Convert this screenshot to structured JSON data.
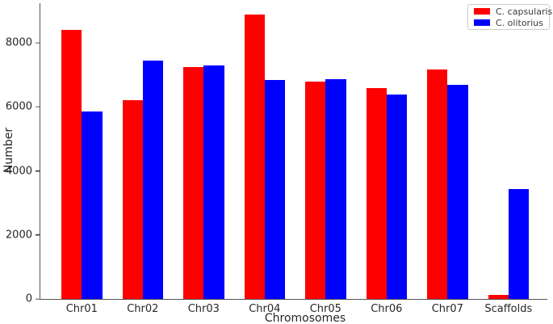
{
  "figure": {
    "background": "#ffffff",
    "axis_color": "#555555",
    "text_color": "#262626"
  },
  "chart_data": {
    "type": "bar",
    "title": "",
    "xlabel": "Chromosomes",
    "ylabel": "Number",
    "categories": [
      "Chr01",
      "Chr02",
      "Chr03",
      "Chr04",
      "Chr05",
      "Chr06",
      "Chr07",
      "Scaffolds"
    ],
    "series": [
      {
        "name": "C. capsularis",
        "color": "#ff0000",
        "values": [
          8400,
          6200,
          7250,
          8880,
          6780,
          6600,
          7180,
          130
        ]
      },
      {
        "name": "C. olitorius",
        "color": "#0000ff",
        "values": [
          5870,
          7460,
          7300,
          6840,
          6860,
          6380,
          6700,
          3430
        ]
      }
    ],
    "ylim": [
      0,
      9240
    ],
    "yticks": [
      0,
      2000,
      4000,
      6000,
      8000
    ],
    "grid": false,
    "legend_position": "upper right"
  }
}
